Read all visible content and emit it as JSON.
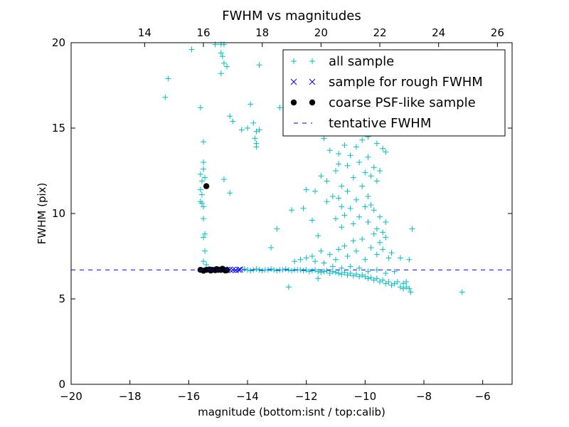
{
  "chart_data": {
    "type": "scatter",
    "title": "FWHM vs magnitudes",
    "xlabel": "magnitude (bottom:isnt / top:calib)",
    "ylabel": "FWHM (pix)",
    "xlim": [
      -20,
      -5
    ],
    "ylim": [
      0,
      20
    ],
    "x_ticks": [
      -20,
      -18,
      -16,
      -14,
      -12,
      -10,
      -8,
      -6
    ],
    "x_tick_labels": [
      "−20",
      "−18",
      "−16",
      "−14",
      "−12",
      "−10",
      "−8",
      "−6"
    ],
    "y_ticks": [
      0,
      5,
      10,
      15,
      20
    ],
    "y_tick_labels": [
      "0",
      "5",
      "10",
      "15",
      "20"
    ],
    "top_axis": {
      "offset": 31.5,
      "ticks": [
        14,
        16,
        18,
        20,
        22,
        24,
        26
      ],
      "tick_labels": [
        "14",
        "16",
        "18",
        "20",
        "22",
        "24",
        "26"
      ]
    },
    "legend": {
      "position": "top-right",
      "entries": [
        {
          "label": "all sample",
          "marker": "plus",
          "color": "#00bfbf"
        },
        {
          "label": "sample for rough FWHM",
          "marker": "x",
          "color": "#0000ff"
        },
        {
          "label": "coarse PSF-like sample",
          "marker": "dot",
          "color": "#000000"
        },
        {
          "label": "tentative FWHM",
          "marker": "dashed-line",
          "color": "#0000ff"
        }
      ]
    },
    "tentative_fwhm": 6.7,
    "series": [
      {
        "name": "all sample",
        "color": "#00bfbf",
        "points": [
          [
            -16.8,
            16.8
          ],
          [
            -16.7,
            17.9
          ],
          [
            -15.9,
            19.6
          ],
          [
            -15.1,
            19.9
          ],
          [
            -14.9,
            19.9
          ],
          [
            -14.9,
            19.4
          ],
          [
            -14.8,
            19.9
          ],
          [
            -14.85,
            19.2
          ],
          [
            -14.8,
            18.8
          ],
          [
            -14.7,
            18.6
          ],
          [
            -14.9,
            18.2
          ],
          [
            -13.6,
            18.7
          ],
          [
            -15.6,
            16.2
          ],
          [
            -15.5,
            14.2
          ],
          [
            -15.5,
            13.0
          ],
          [
            -15.5,
            12.6
          ],
          [
            -15.6,
            12.3
          ],
          [
            -15.45,
            12.1
          ],
          [
            -15.55,
            11.9
          ],
          [
            -15.6,
            11.4
          ],
          [
            -15.55,
            11.1
          ],
          [
            -15.6,
            10.7
          ],
          [
            -15.55,
            10.6
          ],
          [
            -15.5,
            10.4
          ],
          [
            -15.5,
            9.7
          ],
          [
            -15.45,
            8.8
          ],
          [
            -15.5,
            8.6
          ],
          [
            -15.45,
            7.8
          ],
          [
            -15.5,
            7.2
          ],
          [
            -15.4,
            7.0
          ],
          [
            -14.6,
            15.7
          ],
          [
            -14.5,
            15.4
          ],
          [
            -14.8,
            12.0
          ],
          [
            -14.6,
            11.2
          ],
          [
            -14.2,
            14.9
          ],
          [
            -14.0,
            15.0
          ],
          [
            -13.9,
            16.4
          ],
          [
            -13.8,
            15.3
          ],
          [
            -13.7,
            14.8
          ],
          [
            -13.75,
            14.4
          ],
          [
            -13.7,
            14.1
          ],
          [
            -13.7,
            13.9
          ],
          [
            -13.6,
            14.9
          ],
          [
            -12.9,
            16.2
          ],
          [
            -13.0,
            9.1
          ],
          [
            -13.2,
            8.0
          ],
          [
            -12.5,
            10.2
          ],
          [
            -12.1,
            10.3
          ],
          [
            -11.8,
            9.6
          ],
          [
            -11.6,
            8.7
          ],
          [
            -12.4,
            7.2
          ],
          [
            -12.2,
            7.3
          ],
          [
            -12.0,
            7.4
          ],
          [
            -11.8,
            7.5
          ],
          [
            -11.7,
            7.2
          ],
          [
            -11.5,
            7.8
          ],
          [
            -11.6,
            6.2
          ],
          [
            -12.6,
            5.7
          ],
          [
            -14.1,
            6.75
          ],
          [
            -14.0,
            6.7
          ],
          [
            -13.9,
            6.65
          ],
          [
            -13.8,
            6.7
          ],
          [
            -13.7,
            6.75
          ],
          [
            -13.6,
            6.7
          ],
          [
            -13.5,
            6.65
          ],
          [
            -13.4,
            6.7
          ],
          [
            -13.3,
            6.7
          ],
          [
            -13.2,
            6.75
          ],
          [
            -13.1,
            6.7
          ],
          [
            -13.0,
            6.65
          ],
          [
            -12.9,
            6.7
          ],
          [
            -12.8,
            6.7
          ],
          [
            -12.7,
            6.75
          ],
          [
            -12.6,
            6.7
          ],
          [
            -12.5,
            6.65
          ],
          [
            -12.4,
            6.7
          ],
          [
            -12.3,
            6.7
          ],
          [
            -12.2,
            6.7
          ],
          [
            -12.1,
            6.65
          ],
          [
            -12.0,
            6.7
          ],
          [
            -11.9,
            6.6
          ],
          [
            -11.8,
            6.65
          ],
          [
            -11.7,
            6.7
          ],
          [
            -11.6,
            6.6
          ],
          [
            -11.5,
            6.55
          ],
          [
            -11.4,
            6.6
          ],
          [
            -11.3,
            6.65
          ],
          [
            -11.2,
            6.5
          ],
          [
            -11.1,
            6.6
          ],
          [
            -11.0,
            6.55
          ],
          [
            -10.9,
            6.5
          ],
          [
            -10.8,
            6.45
          ],
          [
            -10.7,
            6.55
          ],
          [
            -10.6,
            6.4
          ],
          [
            -10.5,
            6.5
          ],
          [
            -10.4,
            6.35
          ],
          [
            -10.3,
            6.45
          ],
          [
            -10.2,
            6.3
          ],
          [
            -10.1,
            6.4
          ],
          [
            -10.0,
            6.3
          ],
          [
            -9.9,
            6.2
          ],
          [
            -9.8,
            6.25
          ],
          [
            -9.7,
            6.1
          ],
          [
            -9.6,
            6.2
          ],
          [
            -9.5,
            6.0
          ],
          [
            -9.4,
            6.1
          ],
          [
            -9.3,
            5.9
          ],
          [
            -9.2,
            6.0
          ],
          [
            -9.1,
            5.8
          ],
          [
            -9.0,
            5.9
          ],
          [
            -8.9,
            6.0
          ],
          [
            -8.8,
            5.7
          ],
          [
            -8.7,
            5.9
          ],
          [
            -8.6,
            6.0
          ],
          [
            -8.5,
            5.6
          ],
          [
            -8.45,
            5.4
          ],
          [
            -8.6,
            5.7
          ],
          [
            -8.7,
            5.6
          ],
          [
            -9.9,
            6.6
          ],
          [
            -10.2,
            6.8
          ],
          [
            -10.5,
            6.9
          ],
          [
            -9.6,
            6.7
          ],
          [
            -9.3,
            6.5
          ],
          [
            -10.8,
            6.8
          ],
          [
            -11.1,
            6.9
          ],
          [
            -9.0,
            6.6
          ],
          [
            -6.7,
            5.4
          ],
          [
            -11.4,
            7.1
          ],
          [
            -11.2,
            7.6
          ],
          [
            -11.0,
            7.3
          ],
          [
            -10.9,
            7.9
          ],
          [
            -10.7,
            8.1
          ],
          [
            -10.6,
            7.5
          ],
          [
            -10.4,
            8.4
          ],
          [
            -10.3,
            7.8
          ],
          [
            -10.1,
            8.5
          ],
          [
            -10.0,
            7.3
          ],
          [
            -9.8,
            8.0
          ],
          [
            -9.7,
            8.8
          ],
          [
            -9.6,
            7.6
          ],
          [
            -9.5,
            8.3
          ],
          [
            -9.4,
            7.9
          ],
          [
            -9.3,
            8.6
          ],
          [
            -9.2,
            7.4
          ],
          [
            -9.1,
            7.7
          ],
          [
            -8.8,
            7.4
          ],
          [
            -8.5,
            7.3
          ],
          [
            -8.4,
            9.1
          ],
          [
            -11.0,
            9.7
          ],
          [
            -10.8,
            9.2
          ],
          [
            -10.7,
            9.9
          ],
          [
            -10.5,
            10.3
          ],
          [
            -10.4,
            9.4
          ],
          [
            -10.2,
            9.8
          ],
          [
            -10.0,
            10.4
          ],
          [
            -9.9,
            9.5
          ],
          [
            -9.7,
            10.2
          ],
          [
            -9.6,
            9.1
          ],
          [
            -9.5,
            9.8
          ],
          [
            -9.4,
            8.9
          ],
          [
            -9.3,
            9.5
          ],
          [
            -10.9,
            10.9
          ],
          [
            -10.6,
            11.3
          ],
          [
            -10.3,
            10.8
          ],
          [
            -10.1,
            11.6
          ],
          [
            -9.9,
            11.0
          ],
          [
            -9.8,
            10.5
          ],
          [
            -11.5,
            12.2
          ],
          [
            -11.3,
            11.9
          ],
          [
            -11.0,
            12.5
          ],
          [
            -10.8,
            11.6
          ],
          [
            -10.6,
            12.8
          ],
          [
            -10.4,
            12.1
          ],
          [
            -10.2,
            13.0
          ],
          [
            -10.0,
            12.4
          ],
          [
            -9.9,
            13.3
          ],
          [
            -9.7,
            12.7
          ],
          [
            -9.6,
            11.9
          ],
          [
            -11.2,
            13.7
          ],
          [
            -10.9,
            13.5
          ],
          [
            -10.7,
            14.0
          ],
          [
            -10.5,
            13.4
          ],
          [
            -10.3,
            13.9
          ],
          [
            -10.1,
            14.3
          ],
          [
            -9.9,
            14.5
          ],
          [
            -9.6,
            14.1
          ],
          [
            -9.4,
            13.8
          ],
          [
            -9.3,
            13.6
          ],
          [
            -11.4,
            14.4
          ],
          [
            -12.0,
            11.4
          ],
          [
            -11.7,
            11.3
          ],
          [
            -11.3,
            10.7
          ],
          [
            -11.1,
            11.0
          ],
          [
            -10.8,
            10.4
          ],
          [
            -10.9,
            12.9
          ],
          [
            -9.8,
            12.2
          ],
          [
            -9.5,
            12.5
          ]
        ]
      },
      {
        "name": "sample for rough FWHM",
        "color": "#0000ff",
        "points": [
          [
            -15.3,
            6.7
          ],
          [
            -15.2,
            6.72
          ],
          [
            -15.1,
            6.7
          ],
          [
            -15.0,
            6.68
          ],
          [
            -14.9,
            6.72
          ],
          [
            -14.8,
            6.7
          ],
          [
            -14.7,
            6.7
          ],
          [
            -14.6,
            6.72
          ],
          [
            -14.5,
            6.7
          ],
          [
            -14.4,
            6.68
          ],
          [
            -14.3,
            6.7
          ],
          [
            -14.25,
            6.72
          ]
        ]
      },
      {
        "name": "coarse PSF-like sample",
        "color": "#000000",
        "points": [
          [
            -15.4,
            11.6
          ],
          [
            -15.6,
            6.7
          ],
          [
            -15.5,
            6.65
          ],
          [
            -15.4,
            6.7
          ],
          [
            -15.3,
            6.72
          ],
          [
            -15.2,
            6.7
          ],
          [
            -15.1,
            6.68
          ],
          [
            -15.0,
            6.7
          ],
          [
            -14.9,
            6.72
          ],
          [
            -14.8,
            6.7
          ],
          [
            -14.7,
            6.68
          ],
          [
            -15.25,
            6.66
          ],
          [
            -15.05,
            6.74
          ],
          [
            -14.85,
            6.76
          ],
          [
            -14.75,
            6.66
          ]
        ]
      }
    ]
  }
}
